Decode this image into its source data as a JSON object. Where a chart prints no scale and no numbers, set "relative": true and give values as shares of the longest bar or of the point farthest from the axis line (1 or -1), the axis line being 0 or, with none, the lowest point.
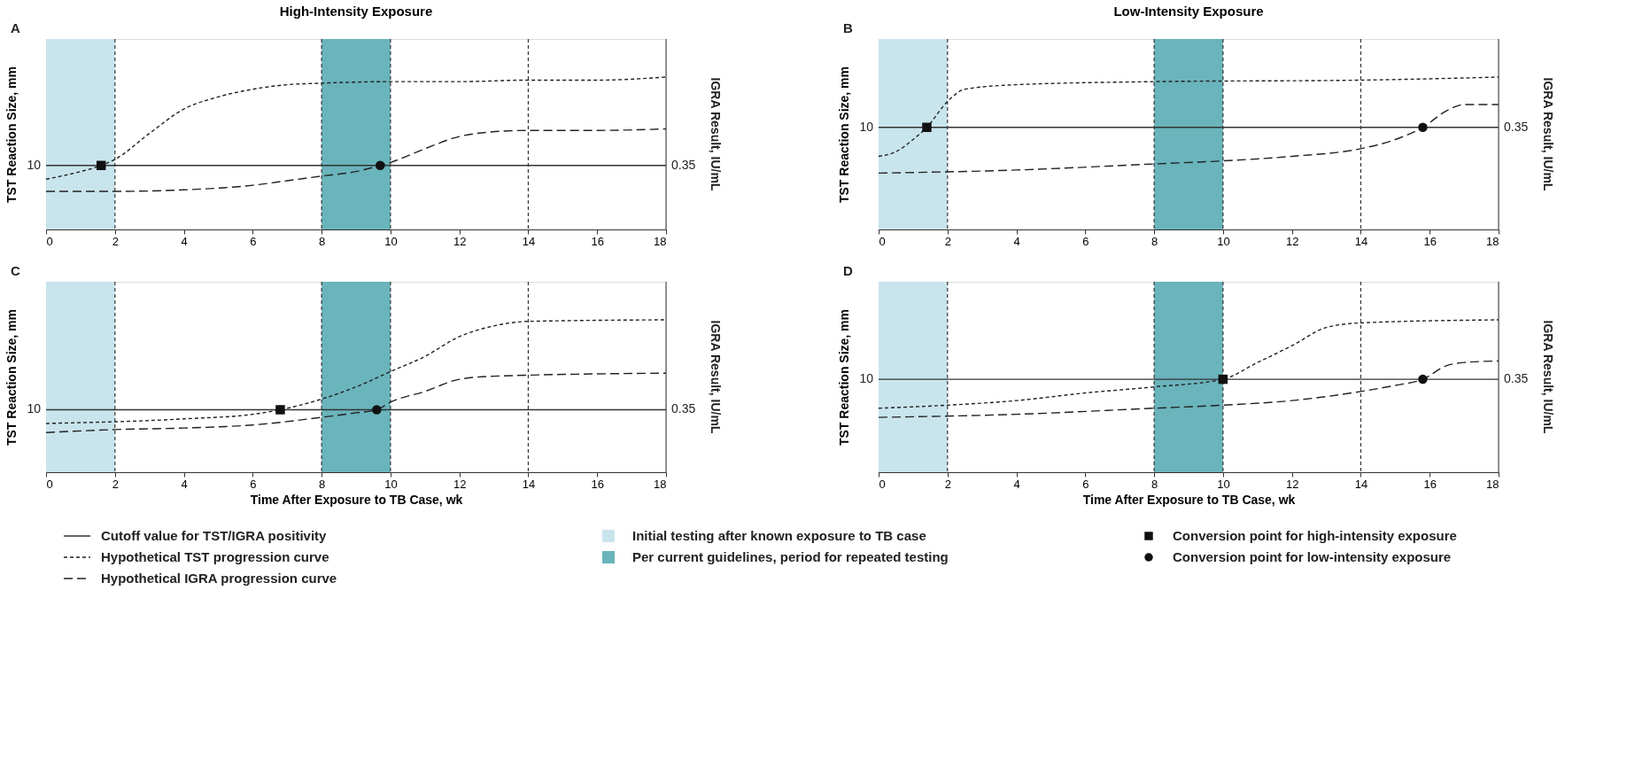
{
  "chart_data": [
    {
      "type": "line",
      "title": "High-Intensity Exposure",
      "subtitle": "A",
      "ylabel": "TST Reaction Size, mm",
      "y2label": "IGRA Result, IU/mL",
      "relative": true,
      "xlim": [
        0,
        18
      ],
      "xticks": [
        0,
        2,
        4,
        6,
        8,
        10,
        12,
        14,
        16,
        18
      ],
      "grid": false,
      "legend": "bottom",
      "series": [
        {
          "name": "Hypothetical TST progression curve",
          "type": "line",
          "line_style": "dotted",
          "color": "#222222",
          "x": [
            0,
            1,
            1.6,
            2,
            3,
            4,
            5,
            6,
            7,
            8,
            10,
            12,
            14,
            16,
            18
          ],
          "values": [
            0.33,
            0.38,
            0.42,
            0.46,
            0.63,
            0.79,
            0.87,
            0.92,
            0.95,
            0.96,
            0.97,
            0.97,
            0.98,
            0.98,
            1.0
          ]
        },
        {
          "name": "Hypothetical IGRA progression curve",
          "type": "line",
          "line_style": "dashed",
          "color": "#222222",
          "x": [
            0,
            2,
            4,
            6,
            7,
            8,
            9,
            9.7,
            10,
            11,
            12,
            12.5,
            14,
            16,
            18
          ],
          "values": [
            0.25,
            0.25,
            0.26,
            0.29,
            0.32,
            0.35,
            0.38,
            0.42,
            0.44,
            0.53,
            0.61,
            0.63,
            0.65,
            0.65,
            0.66
          ]
        },
        {
          "name": "Conversion point for high-intensity exposure",
          "type": "scatter",
          "marker": "square",
          "color": "#111111",
          "x": [
            1.6
          ],
          "values": [
            0.42
          ]
        },
        {
          "name": "Conversion point for low-intensity exposure",
          "type": "scatter",
          "marker": "circle",
          "color": "#111111",
          "x": [
            9.7
          ],
          "values": [
            0.42
          ]
        }
      ],
      "bands": [
        {
          "axis": "x",
          "from": 0,
          "to": 2,
          "label": "Initial testing after known exposure to TB case",
          "color": "#c8e4ec"
        },
        {
          "axis": "x",
          "from": 8,
          "to": 10,
          "label": "Per current guidelines, period for repeated testing",
          "color": "#6ab4bc"
        }
      ],
      "ref_lines": [
        {
          "axis": "y",
          "value": 0.42,
          "label": "Cutoff value for TST/IGRA positivity",
          "line_style": "solid"
        },
        {
          "axis": "x",
          "value": 2,
          "line_style": "dotted"
        },
        {
          "axis": "x",
          "value": 8,
          "line_style": "dotted"
        },
        {
          "axis": "x",
          "value": 10,
          "line_style": "dotted"
        },
        {
          "axis": "x",
          "value": 14,
          "line_style": "dotted"
        }
      ],
      "annotations": [
        "10",
        "0.35"
      ]
    },
    {
      "type": "line",
      "title": "Low-Intensity Exposure",
      "subtitle": "B",
      "ylabel": "TST Reaction Size, mm",
      "y2label": "IGRA Result, IU/mL",
      "relative": true,
      "xlim": [
        0,
        18
      ],
      "xticks": [
        0,
        2,
        4,
        6,
        8,
        10,
        12,
        14,
        16,
        18
      ],
      "grid": false,
      "series": [
        {
          "type": "line",
          "line_style": "dotted",
          "color": "#222222",
          "x": [
            0,
            0.5,
            1,
            1.4,
            2,
            2.5,
            4,
            8,
            14,
            18
          ],
          "values": [
            0.48,
            0.51,
            0.59,
            0.67,
            0.84,
            0.92,
            0.95,
            0.97,
            0.98,
            1.0
          ]
        },
        {
          "type": "line",
          "line_style": "dashed",
          "color": "#222222",
          "x": [
            0,
            4,
            8,
            10,
            12,
            14,
            15,
            15.8,
            16.5,
            17,
            18
          ],
          "values": [
            0.37,
            0.39,
            0.43,
            0.45,
            0.48,
            0.53,
            0.59,
            0.67,
            0.78,
            0.82,
            0.82
          ]
        },
        {
          "type": "scatter",
          "marker": "square",
          "color": "#111111",
          "x": [
            1.4
          ],
          "values": [
            0.67
          ]
        },
        {
          "type": "scatter",
          "marker": "circle",
          "color": "#111111",
          "x": [
            15.8
          ],
          "values": [
            0.67
          ]
        }
      ],
      "bands": [
        {
          "axis": "x",
          "from": 0,
          "to": 2,
          "color": "#c8e4ec"
        },
        {
          "axis": "x",
          "from": 8,
          "to": 10,
          "color": "#6ab4bc"
        }
      ],
      "ref_lines": [
        {
          "axis": "y",
          "value": 0.67,
          "line_style": "solid"
        },
        {
          "axis": "x",
          "value": 2,
          "line_style": "dotted"
        },
        {
          "axis": "x",
          "value": 8,
          "line_style": "dotted"
        },
        {
          "axis": "x",
          "value": 10,
          "line_style": "dotted"
        },
        {
          "axis": "x",
          "value": 14,
          "line_style": "dotted"
        }
      ],
      "annotations": [
        "10",
        "0.35"
      ]
    },
    {
      "type": "line",
      "subtitle": "C",
      "xlabel": "Time After Exposure to TB Case, wk",
      "ylabel": "TST Reaction Size, mm",
      "y2label": "IGRA Result, IU/mL",
      "relative": true,
      "xlim": [
        0,
        18
      ],
      "xticks": [
        0,
        2,
        4,
        6,
        8,
        10,
        12,
        14,
        16,
        18
      ],
      "grid": false,
      "series": [
        {
          "type": "line",
          "line_style": "dotted",
          "color": "#222222",
          "x": [
            0,
            4,
            6,
            6.8,
            8,
            9,
            10,
            11,
            12,
            13,
            14,
            18
          ],
          "values": [
            0.32,
            0.35,
            0.38,
            0.41,
            0.48,
            0.56,
            0.66,
            0.76,
            0.89,
            0.96,
            0.99,
            1.0
          ]
        },
        {
          "type": "line",
          "line_style": "dashed",
          "color": "#222222",
          "x": [
            0,
            2,
            4,
            6,
            8,
            9,
            9.6,
            10,
            11,
            12,
            13,
            18
          ],
          "values": [
            0.26,
            0.28,
            0.29,
            0.31,
            0.36,
            0.39,
            0.41,
            0.46,
            0.53,
            0.61,
            0.63,
            0.65
          ]
        },
        {
          "type": "scatter",
          "marker": "square",
          "color": "#111111",
          "x": [
            6.8
          ],
          "values": [
            0.41
          ]
        },
        {
          "type": "scatter",
          "marker": "circle",
          "color": "#111111",
          "x": [
            9.6
          ],
          "values": [
            0.41
          ]
        }
      ],
      "bands": [
        {
          "axis": "x",
          "from": 0,
          "to": 2,
          "color": "#c8e4ec"
        },
        {
          "axis": "x",
          "from": 8,
          "to": 10,
          "color": "#6ab4bc"
        }
      ],
      "ref_lines": [
        {
          "axis": "y",
          "value": 0.41,
          "line_style": "solid"
        },
        {
          "axis": "x",
          "value": 2,
          "line_style": "dotted"
        },
        {
          "axis": "x",
          "value": 8,
          "line_style": "dotted"
        },
        {
          "axis": "x",
          "value": 10,
          "line_style": "dotted"
        },
        {
          "axis": "x",
          "value": 14,
          "line_style": "dotted"
        }
      ],
      "annotations": [
        "10",
        "0.35"
      ]
    },
    {
      "type": "line",
      "subtitle": "D",
      "xlabel": "Time After Exposure to TB Case, wk",
      "ylabel": "TST Reaction Size, mm",
      "y2label": "IGRA Result, IU/mL",
      "relative": true,
      "xlim": [
        0,
        18
      ],
      "xticks": [
        0,
        2,
        4,
        6,
        8,
        10,
        12,
        14,
        16,
        18
      ],
      "grid": false,
      "series": [
        {
          "type": "line",
          "line_style": "dotted",
          "color": "#222222",
          "x": [
            0,
            2,
            4,
            6,
            8,
            10,
            11,
            12,
            13,
            14,
            18
          ],
          "values": [
            0.42,
            0.44,
            0.47,
            0.52,
            0.56,
            0.61,
            0.72,
            0.83,
            0.95,
            0.98,
            1.0
          ]
        },
        {
          "type": "line",
          "line_style": "dashed",
          "color": "#222222",
          "x": [
            0,
            4,
            8,
            10,
            12,
            14,
            15,
            15.8,
            16.5,
            17,
            18
          ],
          "values": [
            0.36,
            0.38,
            0.42,
            0.44,
            0.47,
            0.53,
            0.57,
            0.61,
            0.7,
            0.72,
            0.73
          ]
        },
        {
          "type": "scatter",
          "marker": "square",
          "color": "#111111",
          "x": [
            10
          ],
          "values": [
            0.61
          ]
        },
        {
          "type": "scatter",
          "marker": "circle",
          "color": "#111111",
          "x": [
            15.8
          ],
          "values": [
            0.61
          ]
        }
      ],
      "bands": [
        {
          "axis": "x",
          "from": 0,
          "to": 2,
          "color": "#c8e4ec"
        },
        {
          "axis": "x",
          "from": 8,
          "to": 10,
          "color": "#6ab4bc"
        }
      ],
      "ref_lines": [
        {
          "axis": "y",
          "value": 0.61,
          "line_style": "solid"
        },
        {
          "axis": "x",
          "value": 2,
          "line_style": "dotted"
        },
        {
          "axis": "x",
          "value": 8,
          "line_style": "dotted"
        },
        {
          "axis": "x",
          "value": 10,
          "line_style": "dotted"
        },
        {
          "axis": "x",
          "value": 14,
          "line_style": "dotted"
        }
      ],
      "annotations": [
        "10",
        "0.35"
      ]
    }
  ]
}
